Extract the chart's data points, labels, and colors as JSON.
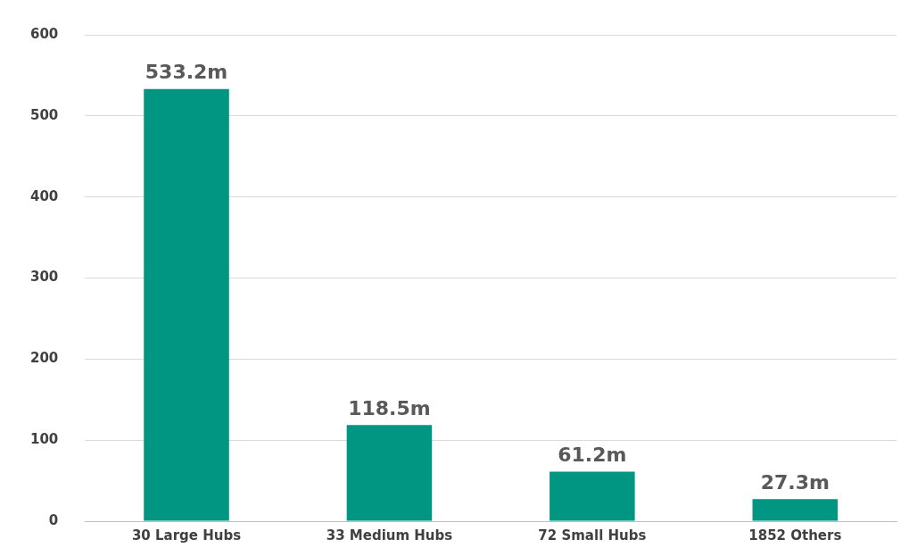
{
  "chart_data": {
    "type": "bar",
    "categories": [
      "30 Large Hubs",
      "33 Medium Hubs",
      "72 Small Hubs",
      "1852 Others"
    ],
    "values": [
      533.2,
      118.5,
      61.2,
      27.3
    ],
    "value_labels": [
      "533.2m",
      "118.5m",
      "61.2m",
      "27.3m"
    ],
    "color": "#009682",
    "ylim": [
      0,
      600
    ],
    "yticks": [
      0,
      100,
      200,
      300,
      400,
      500,
      600
    ],
    "grid": "y",
    "legend": false
  }
}
